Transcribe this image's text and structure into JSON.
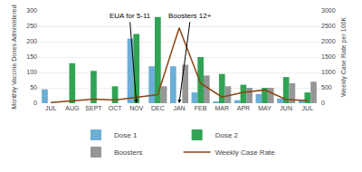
{
  "chart_data": {
    "type": "bar",
    "categories": [
      "JUL",
      "AUG",
      "SEPT",
      "OCT",
      "NOV",
      "DEC",
      "JAN",
      "FEB",
      "MAR",
      "APR",
      "MAY",
      "JUN",
      "JUL"
    ],
    "series": [
      {
        "name": "Dose 1",
        "color": "#6baed6",
        "values": [
          45,
          0,
          0,
          0,
          210,
          120,
          120,
          35,
          5,
          10,
          30,
          15,
          10
        ]
      },
      {
        "name": "Dose 2",
        "color": "#31a354",
        "values": [
          0,
          130,
          105,
          55,
          225,
          280,
          0,
          150,
          95,
          60,
          50,
          85,
          35
        ]
      },
      {
        "name": "Boosters",
        "color": "#969696",
        "values": [
          0,
          0,
          0,
          0,
          0,
          55,
          125,
          90,
          55,
          50,
          50,
          65,
          70
        ]
      },
      {
        "name": "Weekly Case Rate",
        "type": "line",
        "axis": "y2",
        "color": "#8B4513",
        "values": [
          20,
          80,
          130,
          100,
          200,
          280,
          2450,
          650,
          200,
          350,
          430,
          120,
          90
        ]
      }
    ],
    "ylabel": "Monthly Vaccine Doses Administered",
    "y2label": "Weekly Case Rate per 100K",
    "ylim": [
      0,
      300
    ],
    "yticks": [
      0,
      50,
      100,
      150,
      200,
      250,
      300
    ],
    "y2lim": [
      0,
      3000
    ],
    "y2ticks": [
      0,
      500,
      1000,
      1500,
      2000,
      2500,
      3000
    ],
    "annotations": [
      {
        "text": "EUA for 5-11",
        "x": 4
      },
      {
        "text": "Boosters 12+",
        "x": 6
      }
    ],
    "grid": true,
    "legend": "bottom"
  }
}
